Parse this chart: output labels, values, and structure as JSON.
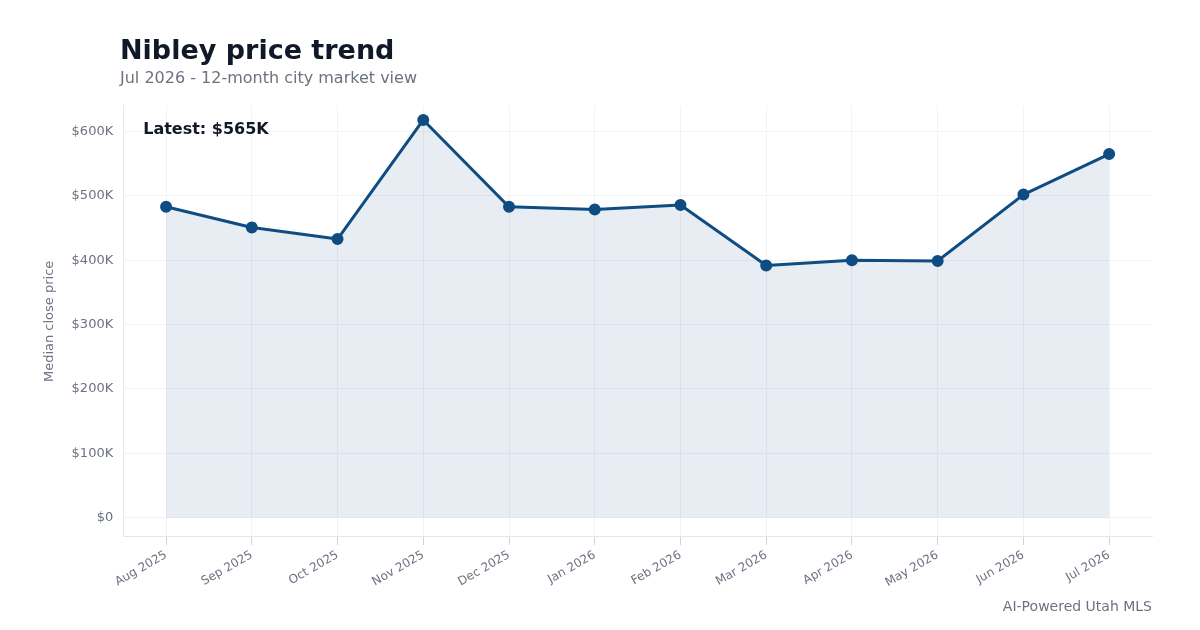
{
  "chart_data": {
    "type": "area",
    "title": "Nibley price trend",
    "subtitle": "Jul 2026 - 12-month city market view",
    "ylabel": "Median close price",
    "categories": [
      "Aug 2025",
      "Sep 2025",
      "Oct 2025",
      "Nov 2025",
      "Dec 2025",
      "Jan 2026",
      "Feb 2026",
      "Mar 2026",
      "Apr 2026",
      "May 2026",
      "Jun 2026",
      "Jul 2026"
    ],
    "series": [
      {
        "color": "#0f4c81",
        "values": [
          483000,
          451000,
          433000,
          618000,
          483000,
          479000,
          486000,
          392000,
          400000,
          399000,
          502000,
          565000
        ]
      }
    ],
    "ylim": [
      -30000,
      640000
    ],
    "yticks": [
      {
        "value": 0,
        "label": "$0"
      },
      {
        "value": 100000,
        "label": "$100K"
      },
      {
        "value": 200000,
        "label": "$200K"
      },
      {
        "value": 300000,
        "label": "$300K"
      },
      {
        "value": 400000,
        "label": "$400K"
      },
      {
        "value": 500000,
        "label": "$500K"
      },
      {
        "value": 600000,
        "label": "$600K"
      }
    ],
    "annotations": [
      "Latest: $565K",
      "AI-Powered Utah MLS"
    ],
    "grid": true,
    "marker": "circle",
    "line_style": "solid",
    "legend": false
  }
}
